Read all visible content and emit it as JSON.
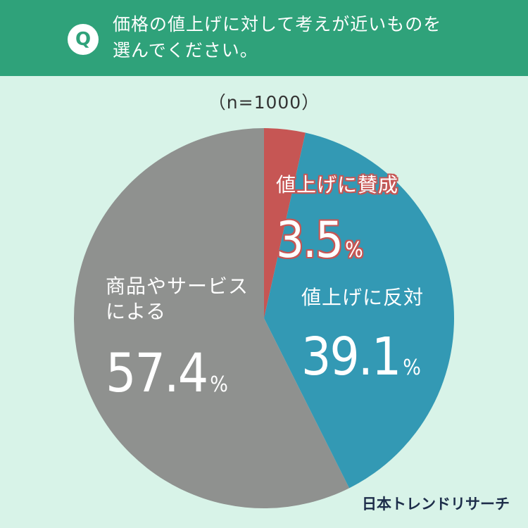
{
  "header": {
    "badge": "Q",
    "question": "価格の値上げに対して考えが近いものを\n選んでください。"
  },
  "sample_size": "（n=1000）",
  "colors": {
    "header_bg": "#2fa27a",
    "page_bg": "#d8f3e8",
    "agree": "#c65654",
    "oppose": "#3399b4",
    "other": "#8f918f"
  },
  "labels": {
    "agree": {
      "category": "値上げに賛成",
      "value": "3.5",
      "unit": "%"
    },
    "oppose": {
      "category": "値上げに反対",
      "value": "39.1",
      "unit": "%"
    },
    "other": {
      "category": "商品やサービス\nによる",
      "value": "57.4",
      "unit": "%"
    }
  },
  "logo": "日本トレンドリサーチ",
  "chart_data": {
    "type": "pie",
    "title": "",
    "subtitle": "（n=1000）",
    "start_angle_deg": 0,
    "direction": "clockwise",
    "slices": [
      {
        "label": "値上げに賛成",
        "value": 3.5,
        "color": "#c65654"
      },
      {
        "label": "値上げに反対",
        "value": 39.1,
        "color": "#3399b4"
      },
      {
        "label": "商品やサービスによる",
        "value": 57.4,
        "color": "#8f918f"
      }
    ]
  }
}
